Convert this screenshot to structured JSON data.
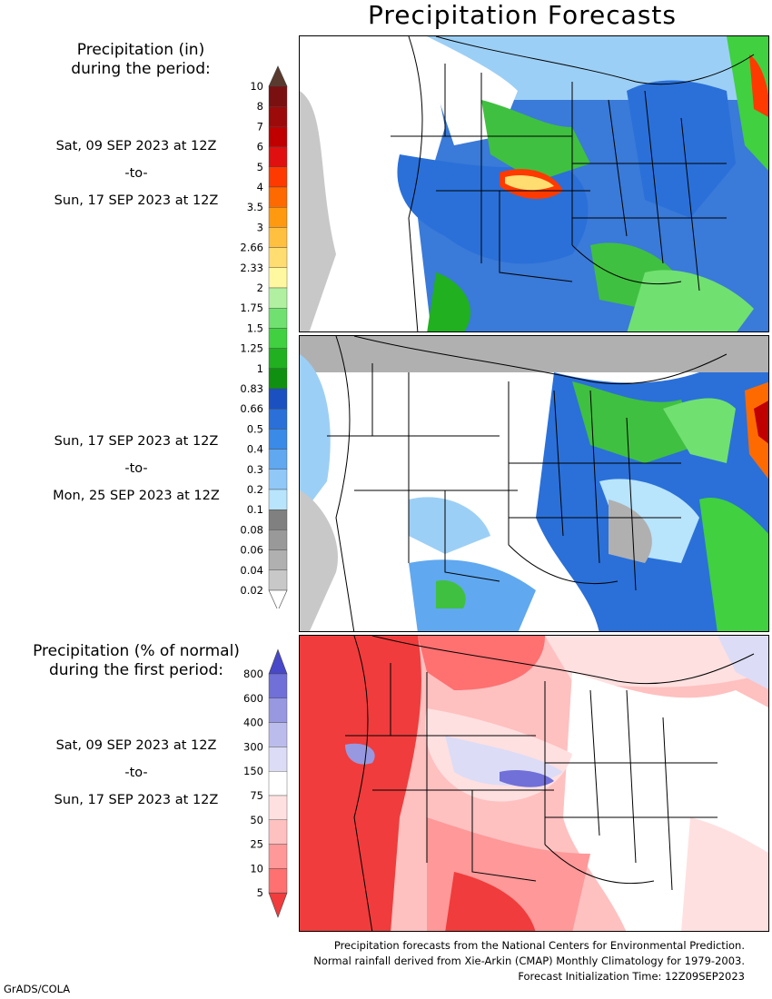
{
  "title": "Precipitation Forecasts",
  "amount_heading": "Precipitation (in)\nduring the period:",
  "normal_heading": "Precipitation (% of normal)\nduring the first period:",
  "period1": {
    "start": "Sat, 09 SEP 2023 at 12Z",
    "sep": "-to-",
    "end": "Sun, 17 SEP 2023 at 12Z"
  },
  "period2": {
    "start": "Sun, 17 SEP 2023 at 12Z",
    "sep": "-to-",
    "end": "Mon, 25 SEP 2023 at 12Z"
  },
  "period3": {
    "start": "Sat, 09 SEP 2023 at 12Z",
    "sep": "-to-",
    "end": "Sun, 17 SEP 2023 at 12Z"
  },
  "amount_scale": {
    "labels": [
      "10",
      "8",
      "7",
      "6",
      "5",
      "4",
      "3.5",
      "3",
      "2.66",
      "2.33",
      "2",
      "1.75",
      "1.5",
      "1.25",
      "1",
      "0.83",
      "0.66",
      "0.5",
      "0.4",
      "0.3",
      "0.2",
      "0.1",
      "0.08",
      "0.06",
      "0.04",
      "0.02"
    ],
    "colors": [
      "#5a3a2e",
      "#7a1010",
      "#9c0a0a",
      "#c00000",
      "#e01010",
      "#ff3a00",
      "#ff6a00",
      "#ff9a10",
      "#ffc040",
      "#ffdd70",
      "#fff8a0",
      "#b0f0a0",
      "#70e070",
      "#40d040",
      "#20b020",
      "#109010",
      "#1a50c0",
      "#2a70d8",
      "#3a8ae8",
      "#60a8f0",
      "#90c8f8",
      "#b8e4fc",
      "#808080",
      "#999999",
      "#b0b0b0",
      "#c8c8c8",
      "#ffffff"
    ]
  },
  "normal_scale": {
    "labels": [
      "800",
      "600",
      "400",
      "300",
      "150",
      "75",
      "50",
      "25",
      "10",
      "5"
    ],
    "colors": [
      "#4848c8",
      "#7070d8",
      "#9898e0",
      "#bcbcec",
      "#dcdcf6",
      "#ffffff",
      "#ffe0e0",
      "#ffc0c0",
      "#ff9898",
      "#ff7070",
      "#f03c3c"
    ]
  },
  "footer": {
    "line1": "Precipitation forecasts from the National Centers for Environmental Prediction.",
    "line2": "Normal rainfall derived from Xie-Arkin (CMAP) Monthly Climatology for 1979-2003.",
    "line3": "Forecast Initialization Time: 12Z09SEP2023"
  },
  "credit": "GrADS/COLA"
}
